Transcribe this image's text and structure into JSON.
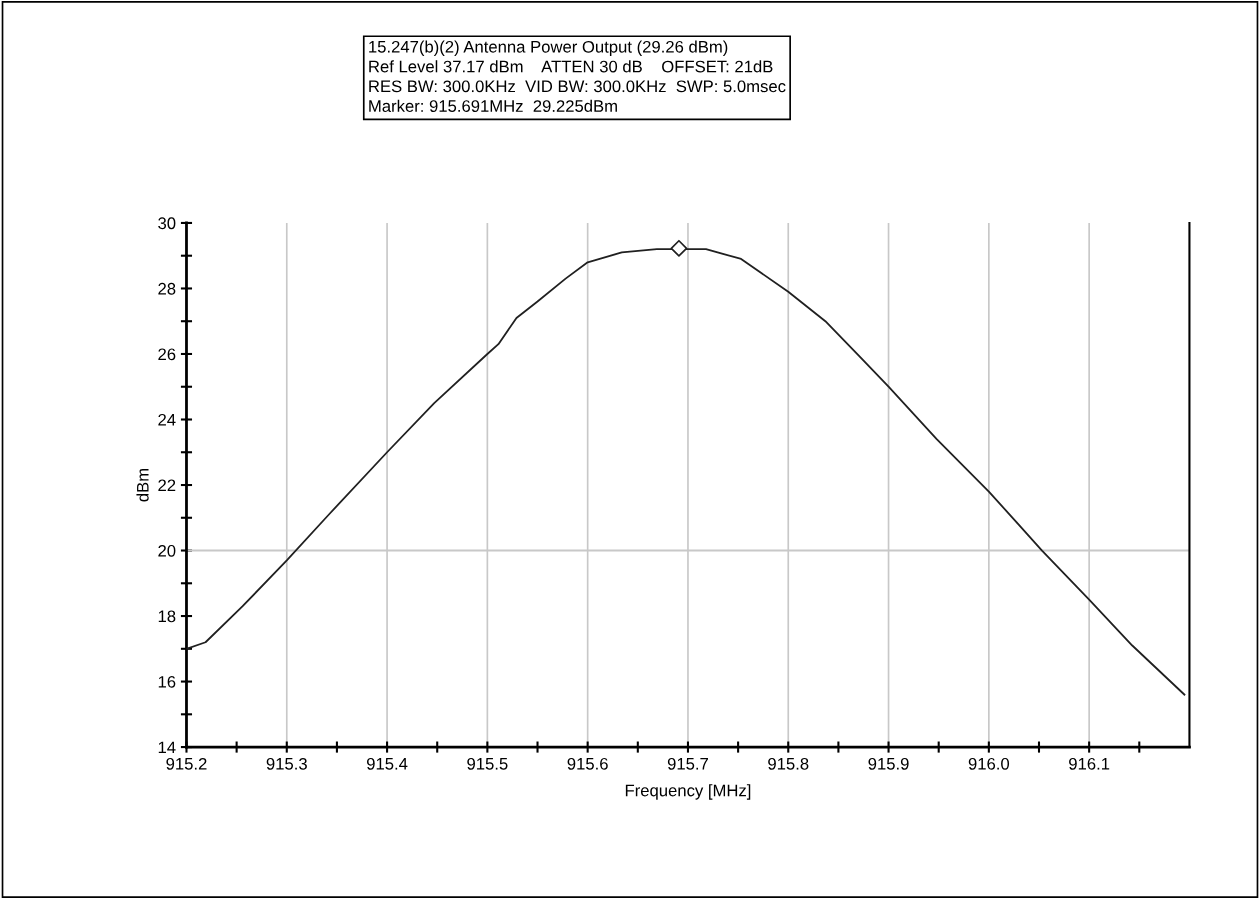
{
  "chart_data": {
    "type": "line",
    "xlabel": "Frequency [MHz]",
    "ylabel": "dBm",
    "annotations": [
      "15.247(b)(2) Antenna Power Output (29.26 dBm)",
      "Ref Level 37.17 dBm    ATTEN 30 dB    OFFSET: 21dB",
      "RES BW: 300.0KHz  VID BW: 300.0KHz  SWP: 5.0msec",
      "Marker: 915.691MHz  29.225dBm"
    ],
    "series": [
      {
        "color": "#202020",
        "x": [
          915.2,
          915.219,
          915.256,
          915.3,
          915.342,
          915.4,
          915.447,
          915.5,
          915.511,
          915.529,
          915.55,
          915.578,
          915.6,
          915.634,
          915.669,
          915.691,
          915.718,
          915.753,
          915.8,
          915.837,
          915.872,
          915.9,
          915.948,
          916.0,
          916.053,
          916.1,
          916.143,
          916.195
        ],
        "values": [
          17.0,
          17.2,
          18.3,
          19.7,
          21.1,
          23.0,
          24.5,
          26.0,
          26.3,
          27.1,
          27.6,
          28.3,
          28.8,
          29.1,
          29.2,
          29.2,
          29.2,
          28.9,
          27.9,
          27.0,
          25.9,
          25.0,
          23.4,
          21.8,
          20.0,
          18.5,
          17.1,
          15.6
        ]
      },
      {
        "type": "scatter",
        "marker": "diamond",
        "color": "#202020",
        "x": [
          915.691
        ],
        "values": [
          29.225
        ]
      }
    ],
    "xlim": [
      915.2,
      916.2
    ],
    "ylim": [
      14,
      30
    ],
    "xticks": [
      915.2,
      915.3,
      915.4,
      915.5,
      915.6,
      915.7,
      915.8,
      915.9,
      {
        "value": 916.0,
        "label": "916.0"
      },
      916.1
    ],
    "yticks": [
      14,
      16,
      18,
      20,
      22,
      24,
      26,
      28,
      30
    ],
    "grid": "x",
    "marker": "none",
    "line_style": "solid",
    "ref_lines": [
      {
        "axis": "y",
        "value": 20,
        "color": "#c8c8c8"
      }
    ]
  }
}
